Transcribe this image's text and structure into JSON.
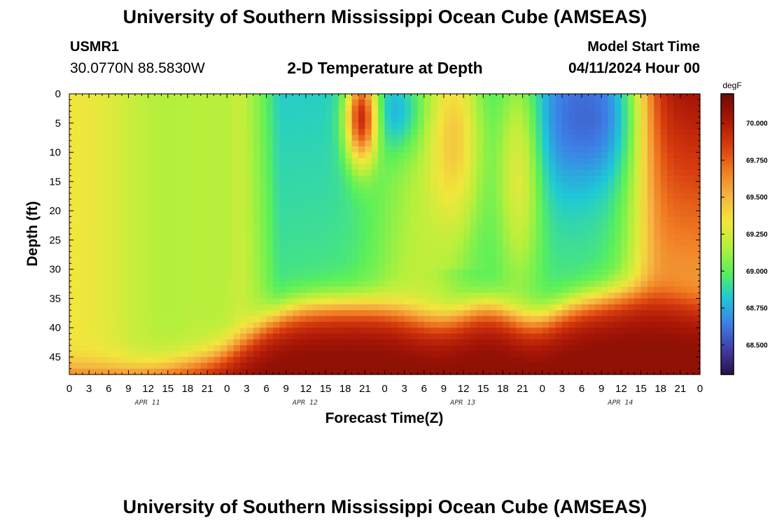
{
  "header": {
    "title": "University of Southern Mississippi Ocean Cube (AMSEAS)",
    "station_id": "USMR1",
    "coords": "30.0770N  88.5830W",
    "subtitle": "2-D Temperature at Depth",
    "model_label": "Model Start Time",
    "model_time": "04/11/2024 Hour 00"
  },
  "footer": {
    "title": "University of Southern Mississippi Ocean Cube (AMSEAS)"
  },
  "chart_data": {
    "type": "heatmap",
    "title": "2-D Temperature at Depth",
    "xlabel": "Forecast Time(Z)",
    "ylabel": "Depth (ft)",
    "x_ticks": [
      "0",
      "3",
      "6",
      "9",
      "12",
      "15",
      "18",
      "21",
      "0",
      "3",
      "6",
      "9",
      "12",
      "15",
      "18",
      "21",
      "0",
      "3",
      "6",
      "9",
      "12",
      "15",
      "18",
      "21",
      "0",
      "3",
      "6",
      "9",
      "12",
      "15",
      "18",
      "21",
      "0"
    ],
    "day_labels": [
      "APR 11",
      "APR 12",
      "APR 13",
      "APR 14"
    ],
    "y_ticks": [
      "0",
      "5",
      "10",
      "15",
      "20",
      "25",
      "30",
      "35",
      "40",
      "45"
    ],
    "xlim_hours": [
      0,
      96
    ],
    "ylim_ft": [
      0,
      48
    ],
    "colorbar": {
      "unit": "degF",
      "range": [
        68.3,
        70.2
      ],
      "ticks": [
        "68.500",
        "68.750",
        "69.000",
        "69.250",
        "69.500",
        "69.750",
        "70.000"
      ],
      "tick_values": [
        68.5,
        68.75,
        69.0,
        69.25,
        69.5,
        69.75,
        70.0
      ],
      "colors": [
        "#2c0f45",
        "#3f3fa6",
        "#3d7ee6",
        "#1ec9d6",
        "#5af05a",
        "#b5f03c",
        "#f2e63c",
        "#f5b442",
        "#f07a22",
        "#d63a0e",
        "#a81606",
        "#6e0a04"
      ]
    }
  }
}
